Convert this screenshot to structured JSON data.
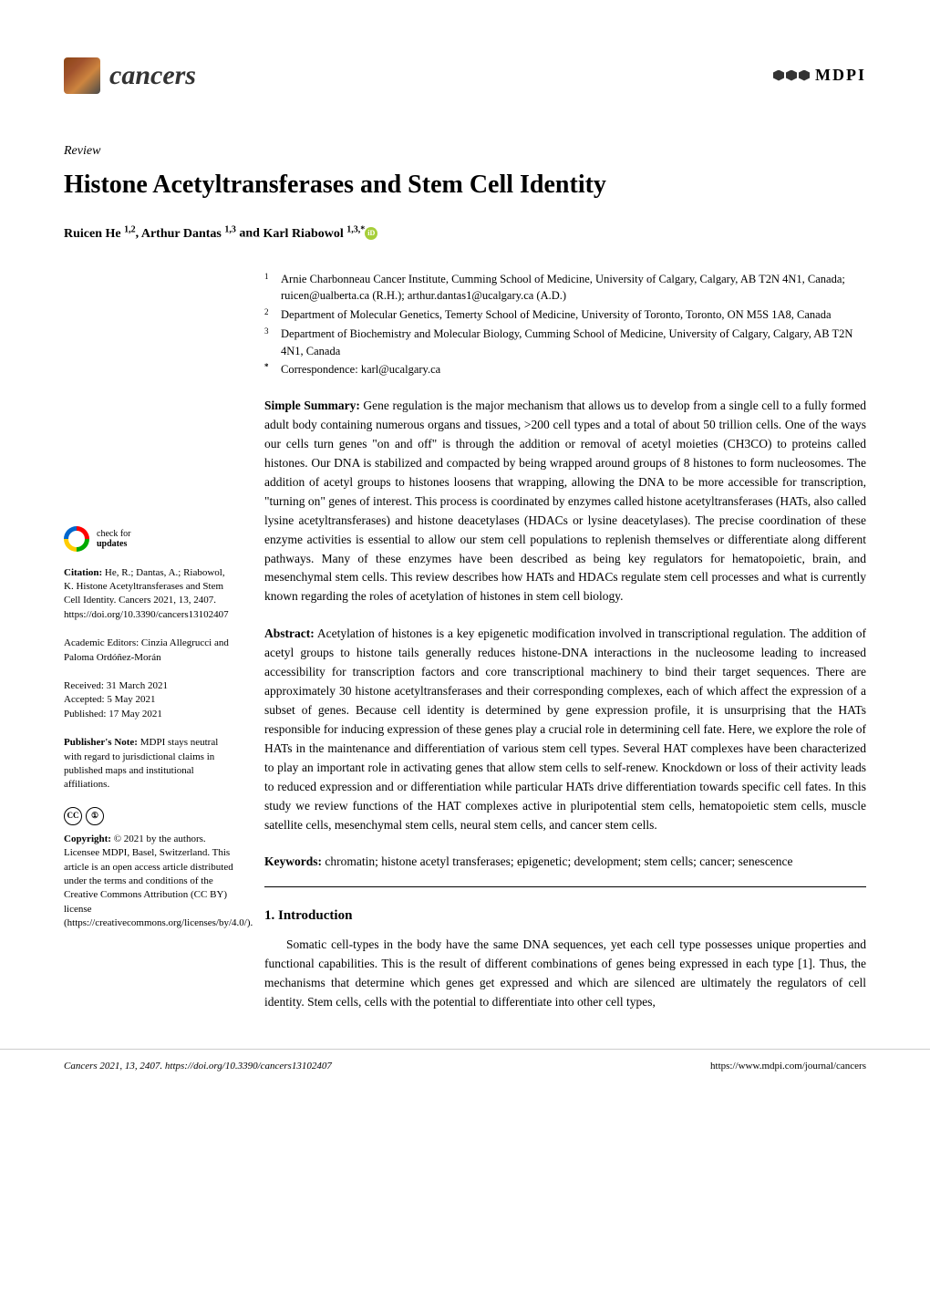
{
  "journal_name": "cancers",
  "publisher": "MDPI",
  "article_type": "Review",
  "title": "Histone Acetyltransferases and Stem Cell Identity",
  "authors_html": "Ruicen He ¹,², Arthur Dantas ¹,³ and Karl Riabowol ¹,³,*",
  "authors": [
    {
      "name": "Ruicen He",
      "sup": "1,2"
    },
    {
      "name": "Arthur Dantas",
      "sup": "1,3"
    },
    {
      "name": "Karl Riabowol",
      "sup": "1,3,*",
      "orcid": true
    }
  ],
  "affiliations": [
    {
      "num": "1",
      "text": "Arnie Charbonneau Cancer Institute, Cumming School of Medicine, University of Calgary, Calgary, AB T2N 4N1, Canada; ruicen@ualberta.ca (R.H.); arthur.dantas1@ucalgary.ca (A.D.)"
    },
    {
      "num": "2",
      "text": "Department of Molecular Genetics, Temerty School of Medicine, University of Toronto, Toronto, ON M5S 1A8, Canada"
    },
    {
      "num": "3",
      "text": "Department of Biochemistry and Molecular Biology, Cumming School of Medicine, University of Calgary, Calgary, AB T2N 4N1, Canada"
    },
    {
      "num": "*",
      "text": "Correspondence: karl@ucalgary.ca"
    }
  ],
  "simple_summary_label": "Simple Summary:",
  "simple_summary": "Gene regulation is the major mechanism that allows us to develop from a single cell to a fully formed adult body containing numerous organs and tissues, >200 cell types and a total of about 50 trillion cells. One of the ways our cells turn genes \"on and off\" is through the addition or removal of acetyl moieties (CH3CO) to proteins called histones. Our DNA is stabilized and compacted by being wrapped around groups of 8 histones to form nucleosomes. The addition of acetyl groups to histones loosens that wrapping, allowing the DNA to be more accessible for transcription, \"turning on\" genes of interest. This process is coordinated by enzymes called histone acetyltransferases (HATs, also called lysine acetyltransferases) and histone deacetylases (HDACs or lysine deacetylases). The precise coordination of these enzyme activities is essential to allow our stem cell populations to replenish themselves or differentiate along different pathways. Many of these enzymes have been described as being key regulators for hematopoietic, brain, and mesenchymal stem cells. This review describes how HATs and HDACs regulate stem cell processes and what is currently known regarding the roles of acetylation of histones in stem cell biology.",
  "abstract_label": "Abstract:",
  "abstract": "Acetylation of histones is a key epigenetic modification involved in transcriptional regulation. The addition of acetyl groups to histone tails generally reduces histone-DNA interactions in the nucleosome leading to increased accessibility for transcription factors and core transcriptional machinery to bind their target sequences. There are approximately 30 histone acetyltransferases and their corresponding complexes, each of which affect the expression of a subset of genes. Because cell identity is determined by gene expression profile, it is unsurprising that the HATs responsible for inducing expression of these genes play a crucial role in determining cell fate. Here, we explore the role of HATs in the maintenance and differentiation of various stem cell types. Several HAT complexes have been characterized to play an important role in activating genes that allow stem cells to self-renew. Knockdown or loss of their activity leads to reduced expression and or differentiation while particular HATs drive differentiation towards specific cell fates. In this study we review functions of the HAT complexes active in pluripotential stem cells, hematopoietic stem cells, muscle satellite cells, mesenchymal stem cells, neural stem cells, and cancer stem cells.",
  "keywords_label": "Keywords:",
  "keywords": "chromatin; histone acetyl transferases; epigenetic; development; stem cells; cancer; senescence",
  "check_updates_label": "check for",
  "check_updates_bold": "updates",
  "citation_label": "Citation:",
  "citation": "He, R.; Dantas, A.; Riabowol, K. Histone Acetyltransferases and Stem Cell Identity. Cancers 2021, 13, 2407. https://doi.org/10.3390/cancers13102407",
  "citation_journal_italic": "Cancers",
  "citation_year": "2021",
  "citation_vol": "13",
  "citation_page": "2407",
  "editors_label": "Academic Editors:",
  "editors": "Cinzia Allegrucci and Paloma Ordóñez-Morán",
  "received_label": "Received:",
  "received": "31 March 2021",
  "accepted_label": "Accepted:",
  "accepted": "5 May 2021",
  "published_label": "Published:",
  "published": "17 May 2021",
  "publishers_note_label": "Publisher's Note:",
  "publishers_note": "MDPI stays neutral with regard to jurisdictional claims in published maps and institutional affiliations.",
  "copyright_label": "Copyright:",
  "copyright": "© 2021 by the authors. Licensee MDPI, Basel, Switzerland. This article is an open access article distributed under the terms and conditions of the Creative Commons Attribution (CC BY) license (https://creativecommons.org/licenses/by/4.0/).",
  "section1_heading": "1. Introduction",
  "section1_body": "Somatic cell-types in the body have the same DNA sequences, yet each cell type possesses unique properties and functional capabilities. This is the result of different combinations of genes being expressed in each type [1]. Thus, the mechanisms that determine which genes get expressed and which are silenced are ultimately the regulators of cell identity. Stem cells, cells with the potential to differentiate into other cell types,",
  "ref1": "1",
  "footer_left": "Cancers 2021, 13, 2407. https://doi.org/10.3390/cancers13102407",
  "footer_right": "https://www.mdpi.com/journal/cancers",
  "colors": {
    "text": "#000000",
    "background": "#ffffff",
    "link": "#0066cc",
    "orcid": "#a6ce39"
  }
}
